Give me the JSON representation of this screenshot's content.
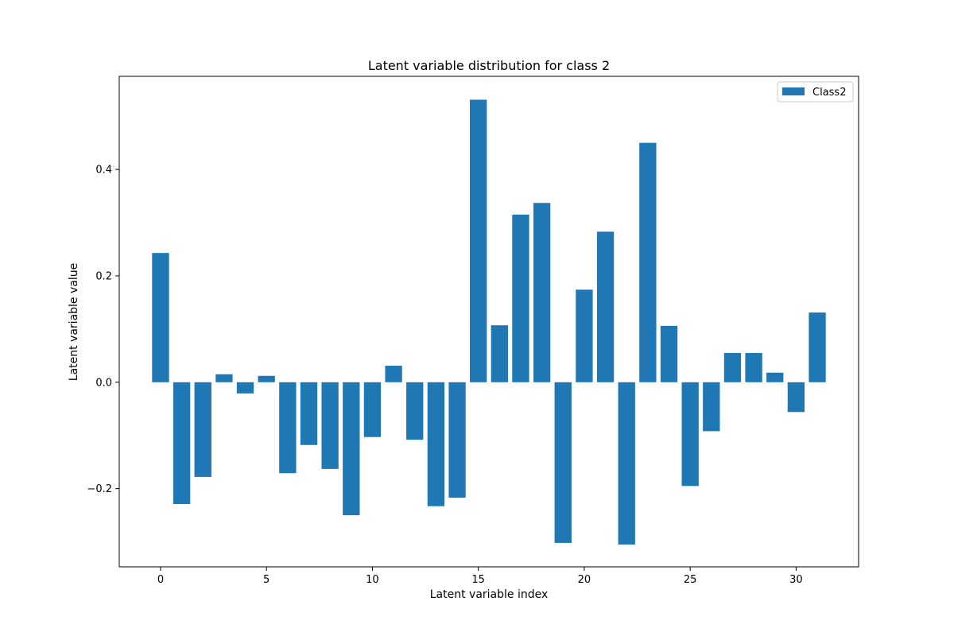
{
  "chart_data": {
    "type": "bar",
    "title": "Latent variable distribution for class 2",
    "xlabel": "Latent variable index",
    "ylabel": "Latent variable value",
    "x": [
      0,
      1,
      2,
      3,
      4,
      5,
      6,
      7,
      8,
      9,
      10,
      11,
      12,
      13,
      14,
      15,
      16,
      17,
      18,
      19,
      20,
      21,
      22,
      23,
      24,
      25,
      26,
      27,
      28,
      29,
      30,
      31
    ],
    "series": [
      {
        "name": "Class2",
        "color": "#1f77b4",
        "values": [
          0.243,
          -0.229,
          -0.178,
          0.015,
          -0.021,
          0.012,
          -0.171,
          -0.118,
          -0.163,
          -0.25,
          -0.103,
          0.031,
          -0.108,
          -0.233,
          -0.217,
          0.531,
          0.107,
          0.315,
          0.337,
          -0.302,
          0.174,
          0.283,
          -0.305,
          0.45,
          0.106,
          -0.195,
          -0.092,
          0.055,
          0.055,
          0.018,
          -0.056,
          0.131
        ]
      }
    ],
    "xlim": [
      -1.95,
      32.95
    ],
    "ylim": [
      -0.347,
      0.575
    ],
    "xticks": [
      0,
      5,
      10,
      15,
      20,
      25,
      30
    ],
    "yticks": [
      -0.2,
      0.0,
      0.2,
      0.4
    ],
    "ytick_labels": [
      "−0.2",
      "0.0",
      "0.2",
      "0.4"
    ],
    "legend": {
      "position": "top-right",
      "entries": [
        "Class2"
      ]
    },
    "grid": false
  }
}
